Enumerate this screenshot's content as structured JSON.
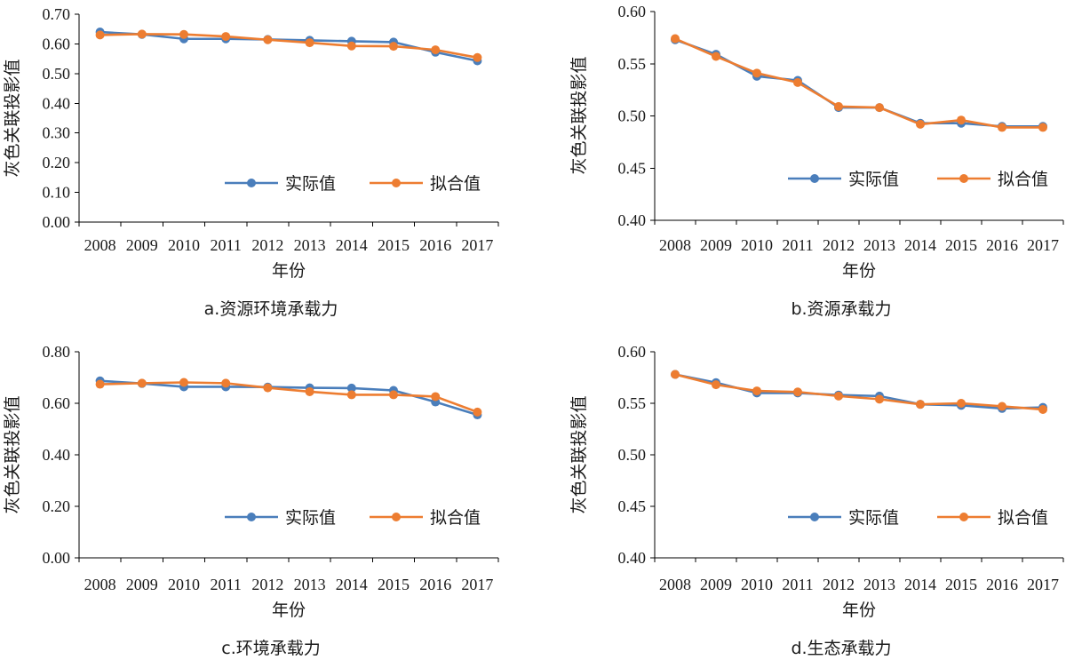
{
  "colors": {
    "actual": "#4a7ebb",
    "fitted": "#ed7d31"
  },
  "chart_data": [
    {
      "type": "line",
      "caption": "a.资源环境承载力",
      "xlabel": "年份",
      "ylabel": "灰色关联投影值",
      "categories": [
        "2008",
        "2009",
        "2010",
        "2011",
        "2012",
        "2013",
        "2014",
        "2015",
        "2016",
        "2017"
      ],
      "ylim": [
        0,
        0.7
      ],
      "yticks": [
        "0.00",
        "0.10",
        "0.20",
        "0.30",
        "0.40",
        "0.50",
        "0.60",
        "0.70"
      ],
      "legend_position": "lower-right",
      "series": [
        {
          "name": "实际值",
          "values": [
            0.64,
            0.632,
            0.617,
            0.617,
            0.615,
            0.612,
            0.609,
            0.606,
            0.572,
            0.543
          ]
        },
        {
          "name": "拟合值",
          "values": [
            0.63,
            0.633,
            0.632,
            0.625,
            0.614,
            0.604,
            0.593,
            0.592,
            0.58,
            0.554
          ]
        }
      ]
    },
    {
      "type": "line",
      "caption": "b.资源承载力",
      "xlabel": "年份",
      "ylabel": "灰色关联投影值",
      "categories": [
        "2008",
        "2009",
        "2010",
        "2011",
        "2012",
        "2013",
        "2014",
        "2015",
        "2016",
        "2017"
      ],
      "ylim": [
        0.4,
        0.6
      ],
      "yticks": [
        "0.40",
        "0.45",
        "0.50",
        "0.55",
        "0.60"
      ],
      "legend_position": "lower-right",
      "series": [
        {
          "name": "实际值",
          "values": [
            0.573,
            0.559,
            0.538,
            0.534,
            0.508,
            0.508,
            0.493,
            0.493,
            0.49,
            0.49
          ]
        },
        {
          "name": "拟合值",
          "values": [
            0.574,
            0.557,
            0.541,
            0.532,
            0.509,
            0.508,
            0.492,
            0.496,
            0.489,
            0.489
          ]
        }
      ]
    },
    {
      "type": "line",
      "caption": "c.环境承载力",
      "xlabel": "年份",
      "ylabel": "灰色关联投影值",
      "categories": [
        "2008",
        "2009",
        "2010",
        "2011",
        "2012",
        "2013",
        "2014",
        "2015",
        "2016",
        "2017"
      ],
      "ylim": [
        0,
        0.8
      ],
      "yticks": [
        "0.00",
        "0.20",
        "0.40",
        "0.60",
        "0.80"
      ],
      "legend_position": "lower-right",
      "series": [
        {
          "name": "实际值",
          "values": [
            0.687,
            0.677,
            0.664,
            0.664,
            0.663,
            0.66,
            0.659,
            0.65,
            0.605,
            0.555
          ]
        },
        {
          "name": "拟合值",
          "values": [
            0.674,
            0.678,
            0.681,
            0.678,
            0.66,
            0.645,
            0.633,
            0.633,
            0.626,
            0.566
          ]
        }
      ]
    },
    {
      "type": "line",
      "caption": "d.生态承载力",
      "xlabel": "年份",
      "ylabel": "灰色关联投影值",
      "categories": [
        "2008",
        "2009",
        "2010",
        "2011",
        "2012",
        "2013",
        "2014",
        "2015",
        "2016",
        "2017"
      ],
      "ylim": [
        0.4,
        0.6
      ],
      "yticks": [
        "0.40",
        "0.45",
        "0.50",
        "0.55",
        "0.60"
      ],
      "legend_position": "lower-right",
      "series": [
        {
          "name": "实际值",
          "values": [
            0.578,
            0.57,
            0.56,
            0.56,
            0.558,
            0.557,
            0.549,
            0.548,
            0.545,
            0.546
          ]
        },
        {
          "name": "拟合值",
          "values": [
            0.578,
            0.568,
            0.562,
            0.561,
            0.557,
            0.554,
            0.549,
            0.55,
            0.547,
            0.544
          ]
        }
      ]
    }
  ]
}
